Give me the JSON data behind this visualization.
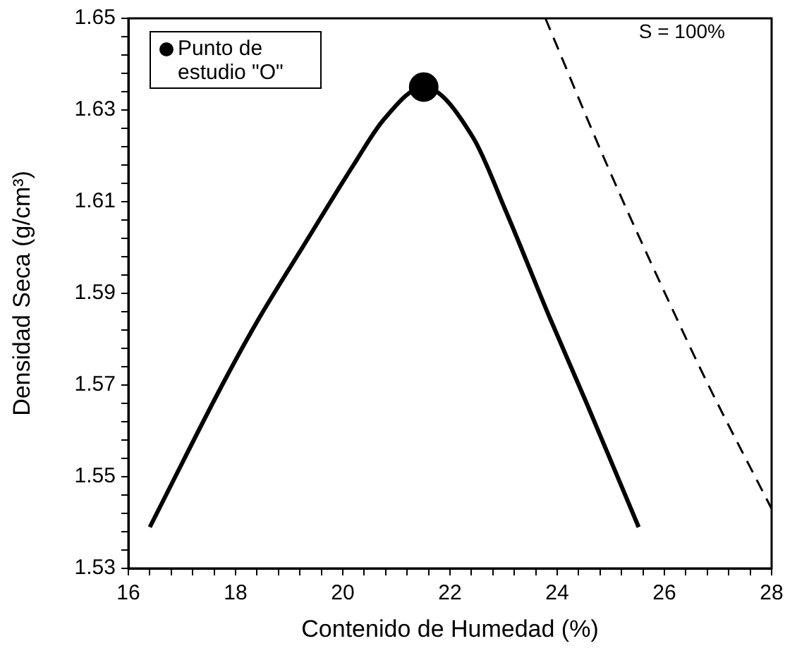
{
  "chart_data": {
    "type": "line",
    "xlabel": "Contenido de Humedad (%)",
    "ylabel": "Densidad Seca (g/cm³)",
    "xlim": [
      16,
      28
    ],
    "ylim": [
      1.53,
      1.65
    ],
    "xticks": [
      16,
      {
        "value": 16.4,
        "label": null
      },
      {
        "value": 16.8,
        "label": null
      },
      {
        "value": 17.2,
        "label": null
      },
      {
        "value": 17.6,
        "label": null
      },
      18,
      {
        "value": 18.4,
        "label": null
      },
      {
        "value": 18.8,
        "label": null
      },
      {
        "value": 19.2,
        "label": null
      },
      {
        "value": 19.6,
        "label": null
      },
      20,
      {
        "value": 20.4,
        "label": null
      },
      {
        "value": 20.8,
        "label": null
      },
      {
        "value": 21.2,
        "label": null
      },
      {
        "value": 21.6,
        "label": null
      },
      22,
      {
        "value": 22.4,
        "label": null
      },
      {
        "value": 22.8,
        "label": null
      },
      {
        "value": 23.2,
        "label": null
      },
      {
        "value": 23.6,
        "label": null
      },
      24,
      {
        "value": 24.4,
        "label": null
      },
      {
        "value": 24.8,
        "label": null
      },
      {
        "value": 25.2,
        "label": null
      },
      {
        "value": 25.6,
        "label": null
      },
      26,
      {
        "value": 26.4,
        "label": null
      },
      {
        "value": 26.8,
        "label": null
      },
      {
        "value": 27.2,
        "label": null
      },
      {
        "value": 27.6,
        "label": null
      },
      28
    ],
    "yticks": [
      1.53,
      {
        "value": 1.534,
        "label": null
      },
      {
        "value": 1.538,
        "label": null
      },
      {
        "value": 1.542,
        "label": null
      },
      {
        "value": 1.546,
        "label": null
      },
      1.55,
      {
        "value": 1.554,
        "label": null
      },
      {
        "value": 1.558,
        "label": null
      },
      {
        "value": 1.562,
        "label": null
      },
      {
        "value": 1.566,
        "label": null
      },
      1.57,
      {
        "value": 1.574,
        "label": null
      },
      {
        "value": 1.578,
        "label": null
      },
      {
        "value": 1.582,
        "label": null
      },
      {
        "value": 1.586,
        "label": null
      },
      1.59,
      {
        "value": 1.594,
        "label": null
      },
      {
        "value": 1.598,
        "label": null
      },
      {
        "value": 1.602,
        "label": null
      },
      {
        "value": 1.606,
        "label": null
      },
      1.61,
      {
        "value": 1.614,
        "label": null
      },
      {
        "value": 1.618,
        "label": null
      },
      {
        "value": 1.622,
        "label": null
      },
      {
        "value": 1.626,
        "label": null
      },
      1.63,
      {
        "value": 1.634,
        "label": null
      },
      {
        "value": 1.638,
        "label": null
      },
      {
        "value": 1.642,
        "label": null
      },
      {
        "value": 1.646,
        "label": null
      },
      1.65
    ],
    "grid": false,
    "legend": "top left",
    "series": [
      {
        "color": "#000000",
        "line_style": "solid",
        "marker": "none",
        "x": [
          16.4,
          17.75,
          18.41,
          19.3,
          20.2,
          20.77,
          21.51,
          22.43,
          23.04,
          23.85,
          24.55,
          25.52
        ],
        "values": [
          1.539,
          1.57,
          1.584,
          1.601,
          1.618,
          1.628,
          1.635,
          1.624,
          1.608,
          1.585,
          1.566,
          1.539
        ]
      },
      {
        "color": "#000000",
        "line_style": "dashed",
        "marker": "none",
        "x": [
          23.78,
          24.93,
          26.25,
          26.82,
          28
        ],
        "values": [
          1.65,
          1.618,
          1.584,
          1.57,
          1.543
        ]
      },
      {
        "type": "scatter",
        "name": "Punto de estudio \"O\"",
        "color": "#000000",
        "marker": "circle",
        "x": [
          21.51
        ],
        "values": [
          1.635
        ]
      }
    ],
    "annotations": [
      "S = 100%"
    ]
  }
}
